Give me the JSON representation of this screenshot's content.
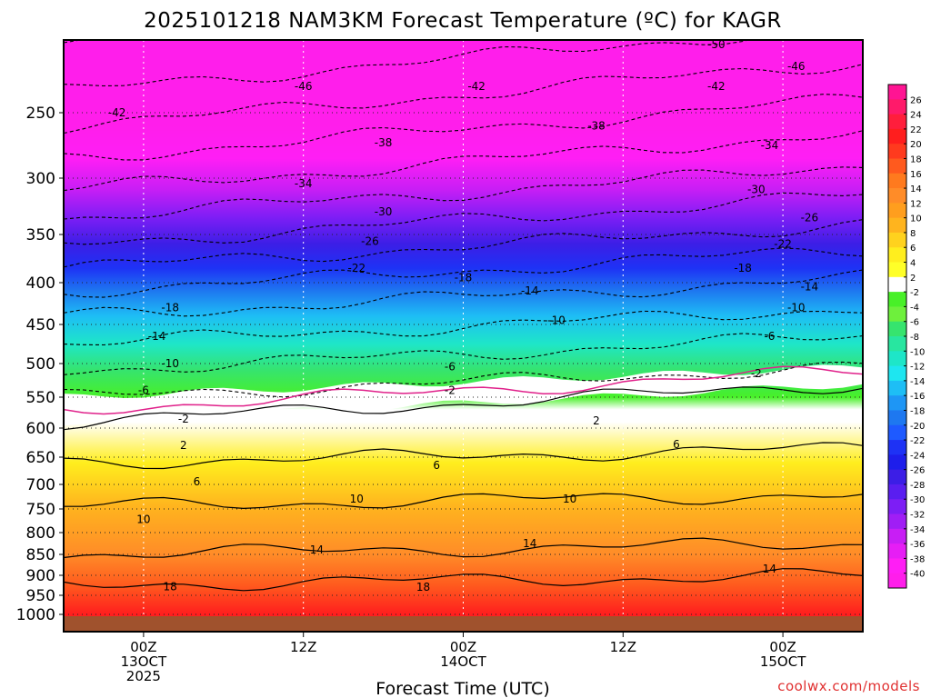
{
  "chart_data": {
    "type": "heatmap",
    "title": "2025101218 NAM3KM Forecast Temperature (ºC) for KAGR",
    "xlabel": "Forecast Time (UTC)",
    "ylabel": "",
    "credit": "coolwx.com/models",
    "x_ticks": [
      {
        "lines": [
          "00Z",
          "13OCT",
          "2025"
        ],
        "hours": 6
      },
      {
        "lines": [
          "12Z"
        ],
        "hours": 18
      },
      {
        "lines": [
          "00Z",
          "14OCT"
        ],
        "hours": 30
      },
      {
        "lines": [
          "12Z"
        ],
        "hours": 42
      },
      {
        "lines": [
          "00Z",
          "15OCT"
        ],
        "hours": 54
      }
    ],
    "xlim_hours": [
      0,
      60
    ],
    "y_ticks": [
      250,
      300,
      350,
      400,
      450,
      500,
      550,
      600,
      650,
      700,
      750,
      800,
      850,
      900,
      950,
      1000
    ],
    "ylim_hPa": [
      200,
      1025
    ],
    "colorbar": {
      "labels": [
        26,
        24,
        22,
        20,
        18,
        16,
        14,
        12,
        10,
        8,
        6,
        4,
        2,
        -2,
        -4,
        -6,
        -8,
        -10,
        -12,
        -14,
        -16,
        -18,
        -20,
        -22,
        -24,
        -26,
        -28,
        -30,
        -32,
        -34,
        -36,
        -38,
        -40
      ],
      "colors": [
        "#ff1493",
        "#ff1a6a",
        "#ff1e3c",
        "#ff1e1e",
        "#ff3a1e",
        "#ff5a1e",
        "#ff7a1e",
        "#ff8c28",
        "#ff9e1e",
        "#ffb41e",
        "#ffd21e",
        "#ffee1e",
        "#ffff28",
        "#ffffff",
        "#48f028",
        "#6ef03c",
        "#36e46e",
        "#28e6a0",
        "#1ee6c8",
        "#1ee6f0",
        "#1ebef5",
        "#1e96f5",
        "#1e78f0",
        "#1e5aff",
        "#1e32f5",
        "#1e1eeb",
        "#3c1ee6",
        "#5a1ef0",
        "#7d1ef5",
        "#a01ef5",
        "#c81ef5",
        "#e61ef5",
        "#ff1ef5",
        "#ff1eeb"
      ]
    },
    "contour_levels": [
      -50,
      -46,
      -42,
      -38,
      -34,
      -30,
      -26,
      -22,
      -18,
      -14,
      -10,
      -6,
      -2,
      0,
      2,
      6,
      10,
      14,
      18
    ],
    "temperature_profile": [
      {
        "p": 200,
        "t": -50
      },
      {
        "p": 235,
        "t": -46
      },
      {
        "p": 260,
        "t": -42
      },
      {
        "p": 285,
        "t": -38
      },
      {
        "p": 310,
        "t": -34
      },
      {
        "p": 335,
        "t": -30
      },
      {
        "p": 360,
        "t": -26
      },
      {
        "p": 385,
        "t": -22
      },
      {
        "p": 410,
        "t": -18
      },
      {
        "p": 440,
        "t": -14
      },
      {
        "p": 475,
        "t": -10
      },
      {
        "p": 510,
        "t": -6
      },
      {
        "p": 550,
        "t": -2
      },
      {
        "p": 570,
        "t": 0
      },
      {
        "p": 590,
        "t": 2
      },
      {
        "p": 660,
        "t": 6
      },
      {
        "p": 745,
        "t": 10
      },
      {
        "p": 850,
        "t": 14
      },
      {
        "p": 925,
        "t": 18
      },
      {
        "p": 1000,
        "t": 22
      }
    ],
    "contour_labels": [
      {
        "label": "-50",
        "h": 49,
        "p": 203
      },
      {
        "label": "-46",
        "h": 18,
        "p": 232
      },
      {
        "label": "-46",
        "h": 55,
        "p": 218
      },
      {
        "label": "-42",
        "h": 4,
        "p": 250
      },
      {
        "label": "-42",
        "h": 31,
        "p": 232
      },
      {
        "label": "-42",
        "h": 49,
        "p": 232
      },
      {
        "label": "-38",
        "h": 24,
        "p": 273
      },
      {
        "label": "-38",
        "h": 40,
        "p": 260
      },
      {
        "label": "-34",
        "h": 18,
        "p": 305
      },
      {
        "label": "-34",
        "h": 53,
        "p": 275
      },
      {
        "label": "-30",
        "h": 24,
        "p": 330
      },
      {
        "label": "-30",
        "h": 52,
        "p": 310
      },
      {
        "label": "-26",
        "h": 23,
        "p": 357
      },
      {
        "label": "-26",
        "h": 56,
        "p": 335
      },
      {
        "label": "-22",
        "h": 22,
        "p": 385
      },
      {
        "label": "-22",
        "h": 54,
        "p": 360
      },
      {
        "label": "-18",
        "h": 8,
        "p": 430
      },
      {
        "label": "-18",
        "h": 30,
        "p": 395
      },
      {
        "label": "-18",
        "h": 51,
        "p": 385
      },
      {
        "label": "-14",
        "h": 7,
        "p": 465
      },
      {
        "label": "-14",
        "h": 35,
        "p": 410
      },
      {
        "label": "-14",
        "h": 56,
        "p": 405
      },
      {
        "label": "-10",
        "h": 8,
        "p": 500
      },
      {
        "label": "-10",
        "h": 37,
        "p": 445
      },
      {
        "label": "-10",
        "h": 55,
        "p": 430
      },
      {
        "label": "-6",
        "h": 6,
        "p": 540
      },
      {
        "label": "-6",
        "h": 29,
        "p": 505
      },
      {
        "label": "-6",
        "h": 53,
        "p": 465
      },
      {
        "label": "-2",
        "h": 29,
        "p": 540
      },
      {
        "label": "-2",
        "h": 9,
        "p": 585
      },
      {
        "label": "-2",
        "h": 52,
        "p": 515
      },
      {
        "label": "2",
        "h": 40,
        "p": 588
      },
      {
        "label": "2",
        "h": 9,
        "p": 630
      },
      {
        "label": "6",
        "h": 10,
        "p": 695
      },
      {
        "label": "6",
        "h": 28,
        "p": 665
      },
      {
        "label": "6",
        "h": 46,
        "p": 628
      },
      {
        "label": "10",
        "h": 6,
        "p": 772
      },
      {
        "label": "10",
        "h": 22,
        "p": 730
      },
      {
        "label": "10",
        "h": 38,
        "p": 730
      },
      {
        "label": "14",
        "h": 19,
        "p": 840
      },
      {
        "label": "14",
        "h": 35,
        "p": 825
      },
      {
        "label": "14",
        "h": 53,
        "p": 885
      },
      {
        "label": "18",
        "h": 8,
        "p": 928
      },
      {
        "label": "18",
        "h": 27,
        "p": 930
      }
    ]
  }
}
